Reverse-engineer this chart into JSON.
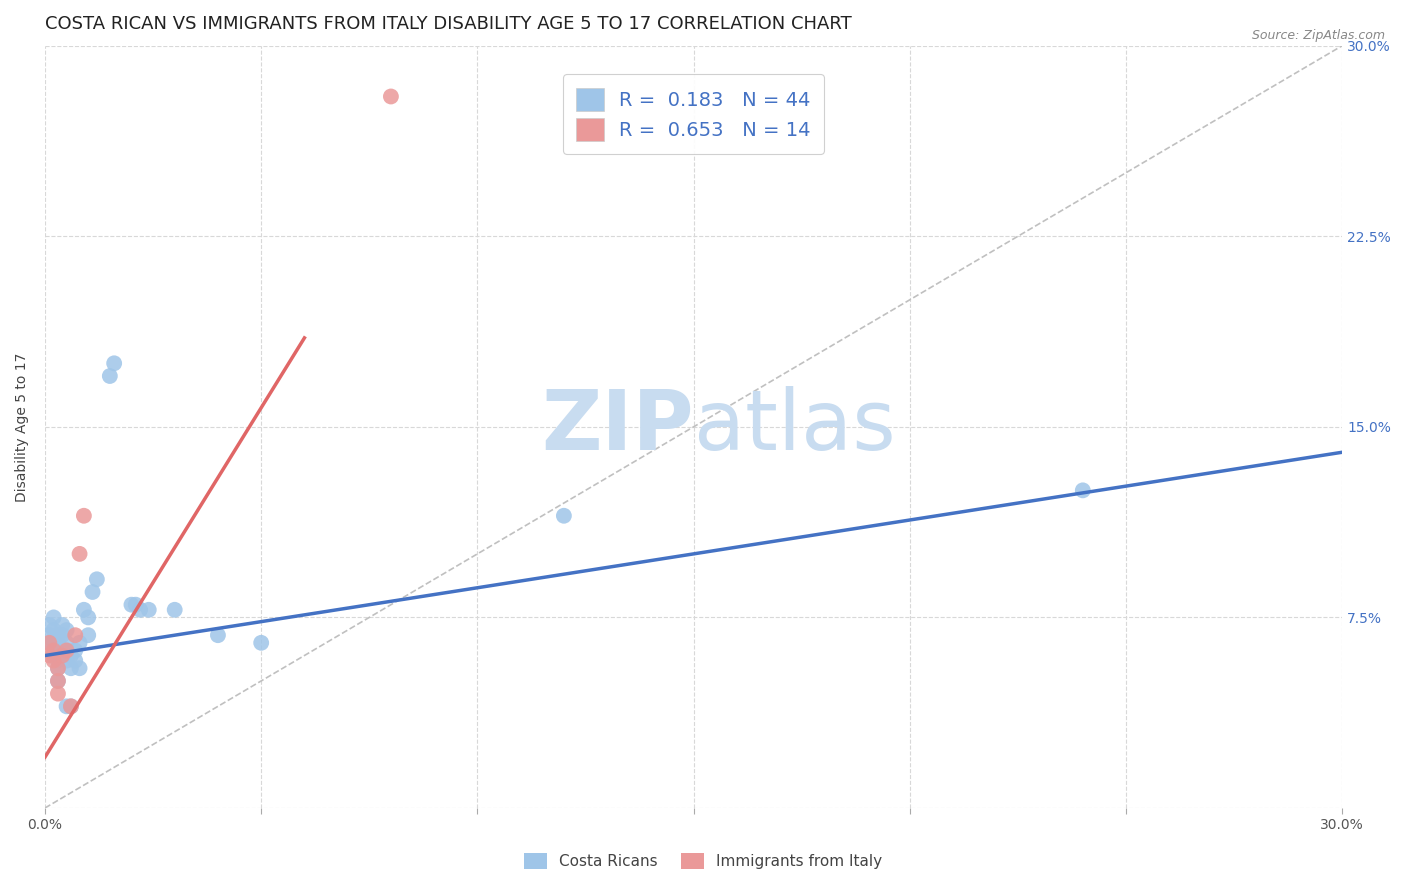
{
  "title": "COSTA RICAN VS IMMIGRANTS FROM ITALY DISABILITY AGE 5 TO 17 CORRELATION CHART",
  "source": "Source: ZipAtlas.com",
  "ylabel": "Disability Age 5 to 17",
  "legend_cr_r": "0.183",
  "legend_cr_n": "44",
  "legend_it_r": "0.653",
  "legend_it_n": "14",
  "legend_label_cr": "Costa Ricans",
  "legend_label_it": "Immigrants from Italy",
  "cr_color": "#9fc5e8",
  "it_color": "#ea9999",
  "cr_line_color": "#4472c4",
  "it_line_color": "#e06666",
  "diagonal_color": "#c0c0c0",
  "watermark_zip": "ZIP",
  "watermark_atlas": "atlas",
  "watermark_color": "#ddeeff",
  "background_color": "#ffffff",
  "cr_x": [
    0.001,
    0.001,
    0.001,
    0.002,
    0.002,
    0.002,
    0.002,
    0.003,
    0.003,
    0.003,
    0.003,
    0.003,
    0.003,
    0.004,
    0.004,
    0.004,
    0.005,
    0.005,
    0.005,
    0.005,
    0.005,
    0.006,
    0.006,
    0.006,
    0.007,
    0.007,
    0.008,
    0.008,
    0.009,
    0.01,
    0.01,
    0.011,
    0.012,
    0.015,
    0.016,
    0.02,
    0.021,
    0.022,
    0.024,
    0.03,
    0.04,
    0.05,
    0.12,
    0.24
  ],
  "cr_y": [
    0.065,
    0.068,
    0.072,
    0.06,
    0.065,
    0.07,
    0.075,
    0.058,
    0.062,
    0.065,
    0.068,
    0.05,
    0.055,
    0.06,
    0.068,
    0.072,
    0.058,
    0.062,
    0.065,
    0.07,
    0.04,
    0.055,
    0.06,
    0.04,
    0.058,
    0.062,
    0.065,
    0.055,
    0.078,
    0.068,
    0.075,
    0.085,
    0.09,
    0.17,
    0.175,
    0.08,
    0.08,
    0.078,
    0.078,
    0.078,
    0.068,
    0.065,
    0.115,
    0.125
  ],
  "it_x": [
    0.001,
    0.001,
    0.002,
    0.002,
    0.003,
    0.003,
    0.003,
    0.004,
    0.005,
    0.006,
    0.007,
    0.008,
    0.009,
    0.08
  ],
  "it_y": [
    0.06,
    0.065,
    0.058,
    0.062,
    0.045,
    0.05,
    0.055,
    0.06,
    0.062,
    0.04,
    0.068,
    0.1,
    0.115,
    0.28
  ],
  "cr_line_x0": 0.0,
  "cr_line_x1": 0.3,
  "cr_line_y0": 0.06,
  "cr_line_y1": 0.14,
  "it_line_x0": 0.0,
  "it_line_x1": 0.06,
  "it_line_y0": 0.02,
  "it_line_y1": 0.185,
  "xlim": [
    0.0,
    0.3
  ],
  "ylim": [
    0.0,
    0.3
  ],
  "title_fontsize": 13,
  "axis_fontsize": 10,
  "tick_fontsize": 10,
  "legend_fontsize": 14,
  "watermark_fontsize_zip": 60,
  "watermark_fontsize_atlas": 60,
  "figsize": [
    14.06,
    8.92
  ],
  "dpi": 100
}
